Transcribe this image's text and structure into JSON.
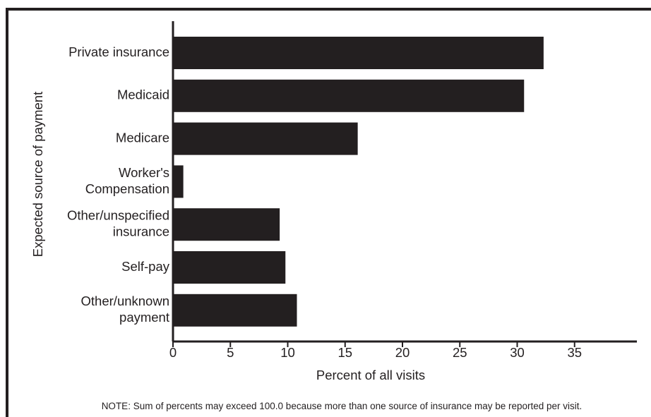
{
  "chart_data": {
    "type": "bar",
    "orientation": "horizontal",
    "categories": [
      "Private insurance",
      "Medicaid",
      "Medicare",
      "Worker's Compensation",
      "Other/unspecified insurance",
      "Self-pay",
      "Other/unknown payment"
    ],
    "category_lines": [
      [
        "Private insurance"
      ],
      [
        "Medicaid"
      ],
      [
        "Medicare"
      ],
      [
        "Worker's",
        "Compensation"
      ],
      [
        "Other/unspecified",
        "insurance"
      ],
      [
        "Self-pay"
      ],
      [
        "Other/unknown",
        "payment"
      ]
    ],
    "values": [
      32.3,
      30.6,
      16.1,
      0.9,
      9.3,
      9.8,
      10.8
    ],
    "xlabel": "Percent of all visits",
    "ylabel": "Expected source of payment",
    "xlim": [
      0,
      39
    ],
    "xticks": [
      0,
      5,
      10,
      15,
      20,
      25,
      30,
      35
    ],
    "grid": false,
    "legend": "none",
    "bar_color": "#231f20",
    "note": "NOTE: Sum of percents may exceed 100.0 because more than one source of insurance may be reported per visit."
  }
}
